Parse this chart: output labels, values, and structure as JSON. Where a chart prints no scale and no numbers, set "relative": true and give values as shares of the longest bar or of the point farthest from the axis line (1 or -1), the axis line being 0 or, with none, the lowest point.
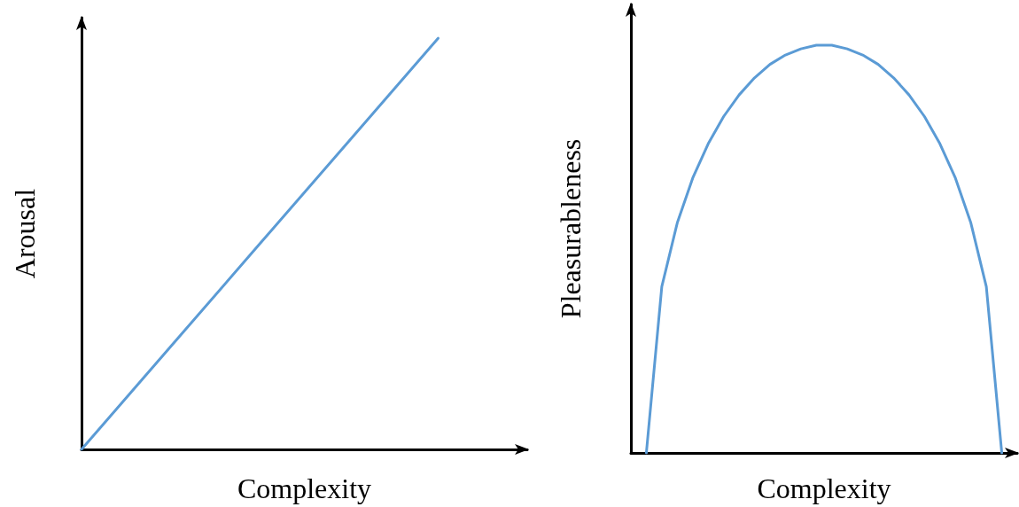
{
  "chart_data": [
    {
      "type": "line",
      "relative": true,
      "xlabel": "Complexity",
      "ylabel": "Arousal",
      "tick_labels": false,
      "marker": "none",
      "categories": [
        null,
        null,
        null,
        null,
        null,
        null
      ],
      "series": [
        {
          "color": "#5b9bd5",
          "values": [
            0,
            0.25,
            0.5,
            0.75,
            1,
            null
          ]
        }
      ]
    },
    {
      "type": "line",
      "relative": true,
      "xlabel": "Complexity",
      "ylabel": "Pleasurableness",
      "tick_labels": false,
      "marker": "none",
      "categories": [
        null,
        null,
        null,
        null,
        null,
        null,
        null,
        null,
        null,
        null,
        null,
        null,
        null,
        null,
        null,
        null,
        null,
        null,
        null,
        null,
        null,
        null,
        null,
        null,
        null,
        null
      ],
      "series": [
        {
          "color": "#5b9bd5",
          "values": [
            null,
            0,
            0.408,
            0.564,
            0.674,
            0.758,
            0.825,
            0.878,
            0.92,
            0.953,
            0.976,
            0.991,
            1,
            1,
            0.991,
            0.976,
            0.953,
            0.92,
            0.878,
            0.825,
            0.758,
            0.674,
            0.564,
            0.408,
            0,
            null
          ]
        }
      ]
    }
  ]
}
